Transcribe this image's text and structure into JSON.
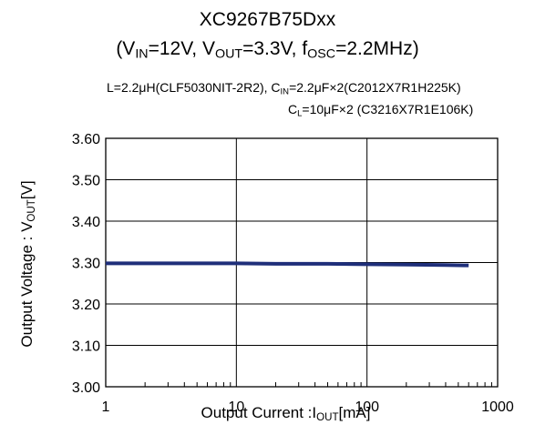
{
  "title": {
    "line1": "XC9267B75Dxx",
    "line2_pre": "(V",
    "line2_vin_sub": "IN",
    "line2_mid1": "=12V, V",
    "line2_vout_sub": "OUT",
    "line2_mid2": "=3.3V, f",
    "line2_fosc_sub": "OSC",
    "line2_post": "=2.2MHz)"
  },
  "conditions": {
    "line1_pre": "L=2.2μH(CLF5030NIT-2R2), C",
    "line1_sub": "IN",
    "line1_post": "=2.2μF×2(C2012X7R1H225K)",
    "line2_pre": "C",
    "line2_sub": "L",
    "line2_post": "=10μF×2 (C3216X7R1E106K)"
  },
  "axes": {
    "xlabel_pre": "Output Current :I",
    "xlabel_sub": "OUT",
    "xlabel_post": "[mA]",
    "ylabel_pre": "Output Voltage : V",
    "ylabel_sub": "OUT",
    "ylabel_post": "[V]"
  },
  "chart_data": {
    "type": "line",
    "x_scale": "log",
    "xlim": [
      1,
      1000
    ],
    "ylim": [
      3.0,
      3.6
    ],
    "xticks": [
      "1",
      "10",
      "100",
      "1000"
    ],
    "yticks": [
      "3.00",
      "3.10",
      "3.20",
      "3.30",
      "3.40",
      "3.50",
      "3.60"
    ],
    "grid": true,
    "series": [
      {
        "color": "#1f2f7a",
        "x": [
          1,
          2,
          5,
          10,
          20,
          50,
          100,
          200,
          400,
          600
        ],
        "y": [
          3.298,
          3.298,
          3.298,
          3.298,
          3.297,
          3.297,
          3.296,
          3.295,
          3.294,
          3.293
        ]
      }
    ]
  }
}
